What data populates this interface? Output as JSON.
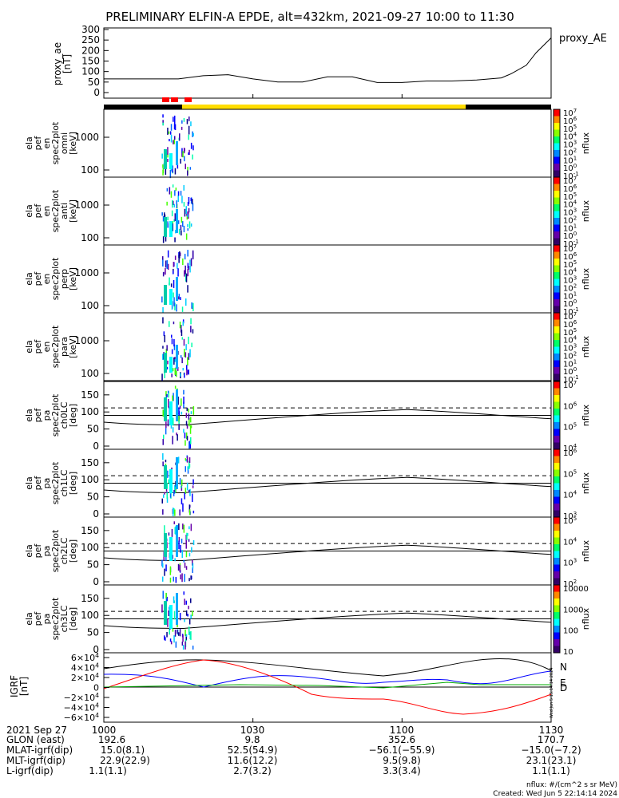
{
  "title": "PRELIMINARY ELFIN-A EPDE, alt=432km, 2021-09-27 10:00 to 11:30",
  "colors": {
    "segment_red": "#ff0000",
    "segment_yellow": "#ffdd00",
    "segment_black": "#000000",
    "igrf_n": "#000000",
    "igrf_e": "#0000ff",
    "igrf_u": "#ff0000",
    "igrf_green": "#00aa00"
  },
  "panels": {
    "proxy_ae": {
      "ylabel_lines": [
        "proxy_ae",
        "[nT]"
      ],
      "legend": "proxy_AE",
      "yticks": [
        "300",
        "250",
        "200",
        "150",
        "100",
        "50",
        "0"
      ]
    },
    "spec": [
      {
        "ylabel_lines": [
          "ela",
          "pef",
          "en",
          "spec2plot",
          "omni",
          "[keV]"
        ],
        "yticks": [
          "1000",
          "100"
        ],
        "cbar_label": "nflux",
        "cbar_ticks": [
          "10^7",
          "10^6",
          "10^5",
          "10^4",
          "10^3",
          "10^2",
          "10^1",
          "10^0",
          "10^-1"
        ]
      },
      {
        "ylabel_lines": [
          "ela",
          "pef",
          "en",
          "spec2plot",
          "anti",
          "[keV]"
        ],
        "yticks": [
          "1000",
          "100"
        ],
        "cbar_label": "nflux",
        "cbar_ticks": [
          "10^7",
          "10^6",
          "10^5",
          "10^4",
          "10^3",
          "10^2",
          "10^1",
          "10^0",
          "10^-1"
        ]
      },
      {
        "ylabel_lines": [
          "ela",
          "pef",
          "en",
          "spec2plot",
          "perp",
          "[keV]"
        ],
        "yticks": [
          "1000",
          "100"
        ],
        "cbar_label": "nflux",
        "cbar_ticks": [
          "10^7",
          "10^6",
          "10^5",
          "10^4",
          "10^3",
          "10^2",
          "10^1",
          "10^0",
          "10^-1"
        ]
      },
      {
        "ylabel_lines": [
          "ela",
          "pef",
          "en",
          "spec2plot",
          "para",
          "[keV]"
        ],
        "yticks": [
          "1000",
          "100"
        ],
        "cbar_label": "nflux",
        "cbar_ticks": [
          "10^7",
          "10^6",
          "10^5",
          "10^4",
          "10^3",
          "10^2",
          "10^1",
          "10^0",
          "10^-1"
        ]
      }
    ],
    "pa": [
      {
        "ylabel_lines": [
          "ela",
          "pef",
          "pa",
          "spec2plot",
          "ch0LC",
          "[deg]"
        ],
        "yticks": [
          "150",
          "100",
          "50",
          "0"
        ],
        "cbar_label": "nflux",
        "cbar_ticks": [
          "10^7",
          "10^6",
          "10^5",
          "10^4"
        ]
      },
      {
        "ylabel_lines": [
          "ela",
          "pef",
          "pa",
          "spec2plot",
          "ch1LC",
          "[deg]"
        ],
        "yticks": [
          "150",
          "100",
          "50",
          "0"
        ],
        "cbar_label": "nflux",
        "cbar_ticks": [
          "10^6",
          "10^5",
          "10^4",
          "10^3"
        ]
      },
      {
        "ylabel_lines": [
          "ela",
          "pef",
          "pa",
          "spec2plot",
          "ch2LC",
          "[deg]"
        ],
        "yticks": [
          "150",
          "100",
          "50",
          "0"
        ],
        "cbar_label": "nflux",
        "cbar_ticks": [
          "10^5",
          "10^4",
          "10^3",
          "10^2"
        ]
      },
      {
        "ylabel_lines": [
          "ela",
          "pef",
          "pa",
          "spec2plot",
          "ch3LC",
          "[deg]"
        ],
        "yticks": [
          "150",
          "100",
          "50",
          "0"
        ],
        "cbar_label": "nflux",
        "cbar_ticks": [
          "10000",
          "1000",
          "100",
          "10"
        ]
      }
    ],
    "igrf": {
      "ylabel_lines": [
        "IGRF",
        "[nT]"
      ],
      "yticks": [
        "6×10^4",
        "4×10^4",
        "2×10^4",
        "0",
        "−2×10^4",
        "−4×10^4",
        "−6×10^4"
      ],
      "legend": [
        "N",
        "E",
        "D"
      ],
      "stamp": "Wed Jun  5 15:14:14 2024"
    }
  },
  "footer": {
    "labels": [
      "2021 Sep 27",
      "GLON (east)",
      "MLAT-igrf(dip)",
      "MLT-igrf(dip)",
      "L-igrf(dip)"
    ],
    "columns": [
      {
        "time": "1000",
        "glon": "192.6",
        "mlat": "15.0(8.1)",
        "mlt": "22.9(22.9)",
        "l": "1.1(1.1)"
      },
      {
        "time": "1030",
        "glon": "9.8",
        "mlat": "52.5(54.9)",
        "mlt": "11.6(12.2)",
        "l": "2.7(3.2)"
      },
      {
        "time": "1100",
        "glon": "352.6",
        "mlat": "−56.1(−55.9)",
        "mlt": "9.5(9.8)",
        "l": "3.3(3.4)"
      },
      {
        "time": "1130",
        "glon": "170.7",
        "mlat": "−15.0(−7.2)",
        "mlt": "23.1(23.1)",
        "l": "1.1(1.1)"
      }
    ],
    "units_note": "nflux: #/(cm^2 s sr MeV)",
    "created": "Created: Wed Jun  5 22:14:14 2024"
  },
  "chart_data": [
    {
      "type": "line",
      "title": "PRELIMINARY ELFIN-A EPDE, alt=432km, 2021-09-27 10:00 to 11:30",
      "ylabel": "proxy_ae [nT]",
      "series": [
        {
          "name": "proxy_AE",
          "x": [
            0,
            5,
            10,
            15,
            20,
            25,
            30,
            35,
            40,
            45,
            50,
            55,
            60,
            65,
            70,
            75,
            80,
            82,
            85,
            87,
            90
          ],
          "y": [
            65,
            65,
            65,
            65,
            80,
            85,
            65,
            50,
            50,
            75,
            75,
            48,
            48,
            55,
            55,
            60,
            70,
            90,
            130,
            190,
            260
          ]
        }
      ],
      "xlim": [
        0,
        90
      ],
      "ylim": [
        0,
        300
      ],
      "xlabel": ""
    },
    {
      "type": "line",
      "title": "",
      "ylabel": "IGRF [nT]",
      "xlim": [
        0,
        90
      ],
      "ylim": [
        -60000,
        60000
      ],
      "series": [
        {
          "name": "N",
          "x": [
            0,
            10,
            20,
            30,
            40,
            50,
            60,
            70,
            80,
            90
          ],
          "y": [
            25000,
            40000,
            50000,
            45000,
            30000,
            20000,
            30000,
            45000,
            50000,
            30000
          ]
        },
        {
          "name": "E",
          "x": [
            0,
            10,
            20,
            30,
            40,
            50,
            60,
            70,
            80,
            90
          ],
          "y": [
            30000,
            10000,
            -2000,
            10000,
            25000,
            15000,
            5000,
            15000,
            10000,
            25000
          ]
        },
        {
          "name": "D",
          "x": [
            0,
            10,
            20,
            30,
            40,
            50,
            60,
            70,
            80,
            90
          ],
          "y": [
            0,
            35000,
            48000,
            30000,
            -10000,
            -25000,
            -30000,
            -45000,
            -55000,
            -10000
          ]
        }
      ]
    }
  ]
}
